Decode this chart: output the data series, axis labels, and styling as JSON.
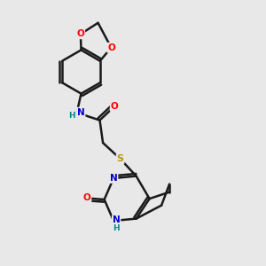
{
  "background_color": "#e8e8e8",
  "bond_color": "#1a1a1a",
  "atom_colors": {
    "N": "#0000cd",
    "O": "#ff0000",
    "S": "#b8960c",
    "H": "#008b8b",
    "C": "#1a1a1a"
  },
  "figsize": [
    3.0,
    3.0
  ],
  "dpi": 100
}
